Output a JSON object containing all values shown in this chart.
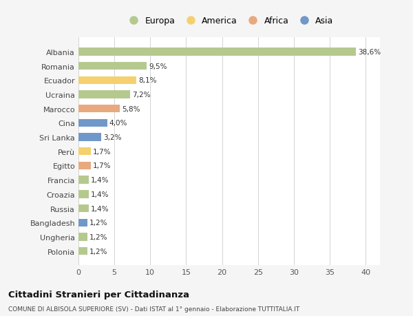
{
  "categories": [
    "Albania",
    "Romania",
    "Ecuador",
    "Ucraina",
    "Marocco",
    "Cina",
    "Sri Lanka",
    "Perù",
    "Egitto",
    "Francia",
    "Croazia",
    "Russia",
    "Bangladesh",
    "Ungheria",
    "Polonia"
  ],
  "values": [
    38.6,
    9.5,
    8.1,
    7.2,
    5.8,
    4.0,
    3.2,
    1.7,
    1.7,
    1.4,
    1.4,
    1.4,
    1.2,
    1.2,
    1.2
  ],
  "labels": [
    "38,6%",
    "9,5%",
    "8,1%",
    "7,2%",
    "5,8%",
    "4,0%",
    "3,2%",
    "1,7%",
    "1,7%",
    "1,4%",
    "1,4%",
    "1,4%",
    "1,2%",
    "1,2%",
    "1,2%"
  ],
  "continents": [
    "Europa",
    "Europa",
    "America",
    "Europa",
    "Africa",
    "Asia",
    "Asia",
    "America",
    "Africa",
    "Europa",
    "Europa",
    "Europa",
    "Asia",
    "Europa",
    "Europa"
  ],
  "colors": {
    "Europa": "#b5c98e",
    "America": "#f5d06e",
    "Africa": "#e8a97e",
    "Asia": "#7098c8"
  },
  "legend_order": [
    "Europa",
    "America",
    "Africa",
    "Asia"
  ],
  "title1": "Cittadini Stranieri per Cittadinanza",
  "title2": "COMUNE DI ALBISOLA SUPERIORE (SV) - Dati ISTAT al 1° gennaio - Elaborazione TUTTITALIA.IT",
  "xlim": [
    0,
    42
  ],
  "xticks": [
    0,
    5,
    10,
    15,
    20,
    25,
    30,
    35,
    40
  ],
  "background_color": "#f5f5f5",
  "bar_background": "#ffffff",
  "bar_height": 0.55
}
